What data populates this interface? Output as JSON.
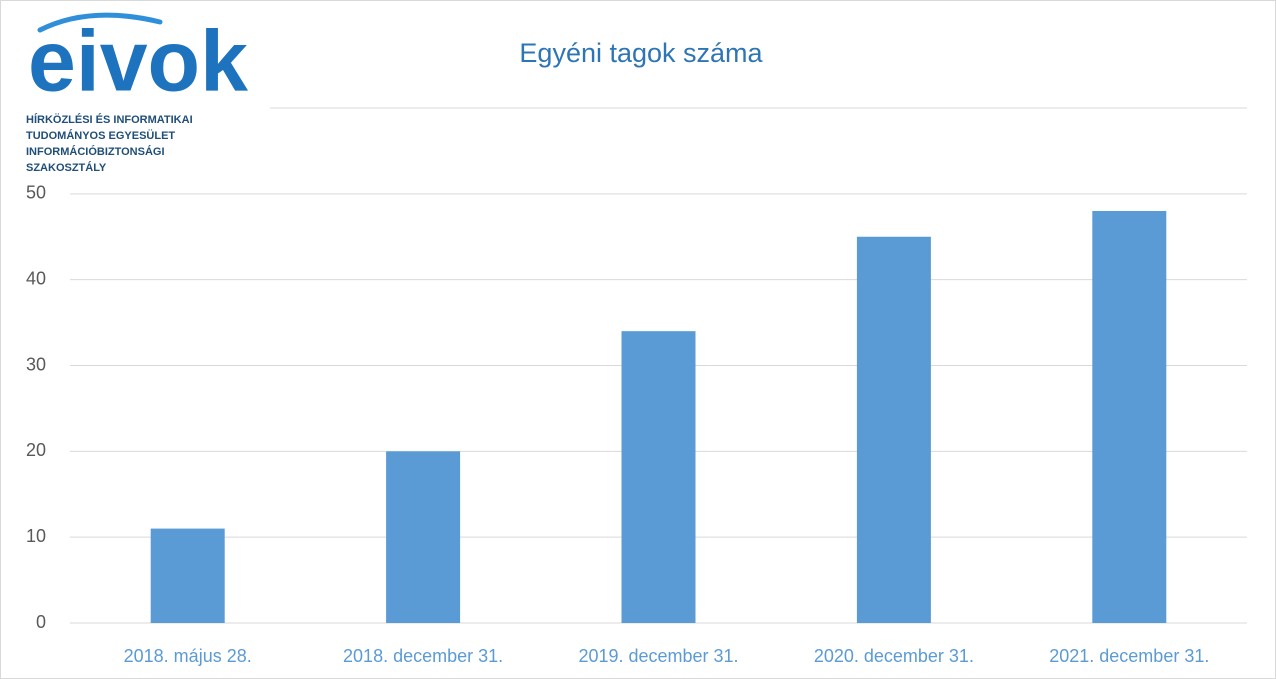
{
  "logo": {
    "name": "eivok",
    "lines": [
      "HÍRKÖZLÉSI ÉS INFORMATIKAI",
      "TUDOMÁNYOS EGYESÜLET",
      "INFORMÁCIÓBIZTONSÁGI",
      "SZAKOSZTÁLY"
    ]
  },
  "chart_data": {
    "type": "bar",
    "title": "Egyéni tagok száma",
    "categories": [
      "2018. május 28.",
      "2018. december 31.",
      "2019. december 31.",
      "2020. december 31.",
      "2021. december 31."
    ],
    "values": [
      11,
      20,
      34,
      45,
      48
    ],
    "color": "#5b9bd5",
    "ylim": [
      0,
      60
    ],
    "yticks": [
      0,
      10,
      20,
      30,
      40,
      50
    ],
    "grid": true
  }
}
